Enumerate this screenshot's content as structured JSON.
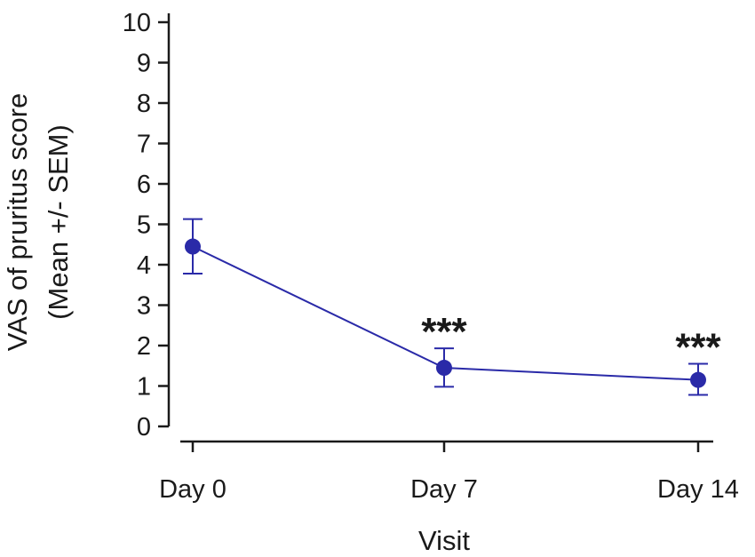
{
  "chart_data": {
    "type": "line",
    "xlabel": "Visit",
    "ylabel_lines": [
      "VAS of pruritus score",
      "(Mean +/- SEM)"
    ],
    "categories": [
      "Day 0",
      "Day 7",
      "Day 14"
    ],
    "ylim": [
      0,
      10
    ],
    "yticks": [
      0,
      1,
      2,
      3,
      4,
      5,
      6,
      7,
      8,
      9,
      10
    ],
    "grid": false,
    "legend": "none",
    "series": [
      {
        "values": [
          4.45,
          1.45,
          1.15
        ],
        "error_low": [
          3.78,
          0.98,
          0.78
        ],
        "error_high": [
          5.13,
          1.93,
          1.55
        ],
        "color": "#2a2aa8"
      }
    ],
    "annotations": [
      {
        "category": "Day 7",
        "text": "***"
      },
      {
        "category": "Day 14",
        "text": "***"
      }
    ]
  }
}
